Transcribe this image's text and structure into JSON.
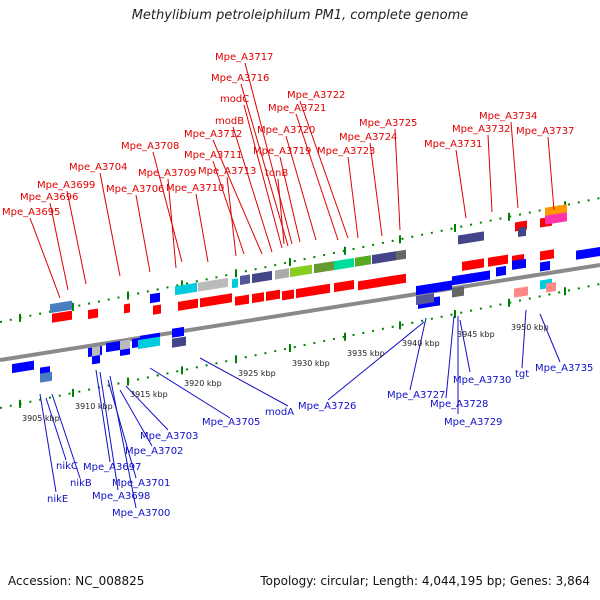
{
  "title": "Methylibium petroleiphilum PM1, complete genome",
  "footer": {
    "accession": "Accession: NC_008825",
    "summary": "Topology: circular; Length: 4,044,195 bp; Genes: 3,864"
  },
  "ticks": [
    "3905 kbp",
    "3910 kbp",
    "3915 kbp",
    "3920 kbp",
    "3925 kbp",
    "3930 kbp",
    "3935 kbp",
    "3940 kbp",
    "3945 kbp",
    "3950 kbp"
  ],
  "top_labels": [
    "Mpe_A3717",
    "Mpe_A3716",
    "modC",
    "Mpe_A3722",
    "Mpe_A3721",
    "modB",
    "Mpe_A3725",
    "Mpe_A3734",
    "Mpe_A3712",
    "Mpe_A3720",
    "Mpe_A3732",
    "Mpe_A3737",
    "Mpe_A3724",
    "Mpe_A3708",
    "Mpe_A3731",
    "Mpe_A3711",
    "Mpe_A3719",
    "Mpe_A3723",
    "Mpe_A3704",
    "Mpe_A3709",
    "Mpe_A3713",
    "tonB",
    "Mpe_A3699",
    "Mpe_A3706",
    "Mpe_A3710",
    "Mpe_A3696",
    "Mpe_A3695"
  ],
  "bottom_labels": [
    "Mpe_A3735",
    "Mpe_A3730",
    "tgt",
    "Mpe_A3727",
    "Mpe_A3726",
    "Mpe_A3728",
    "modA",
    "Mpe_A3729",
    "Mpe_A3705",
    "Mpe_A3703",
    "Mpe_A3702",
    "nikC",
    "Mpe_A3697",
    "nikB",
    "Mpe_A3701",
    "nikE",
    "Mpe_A3698",
    "Mpe_A3700"
  ],
  "colors": {
    "forward": "#ff0000",
    "reverse": "#0000ff",
    "backbone": "#999999",
    "tick": "#008000",
    "label_red": "#e00000",
    "label_blue": "#1010c8"
  }
}
